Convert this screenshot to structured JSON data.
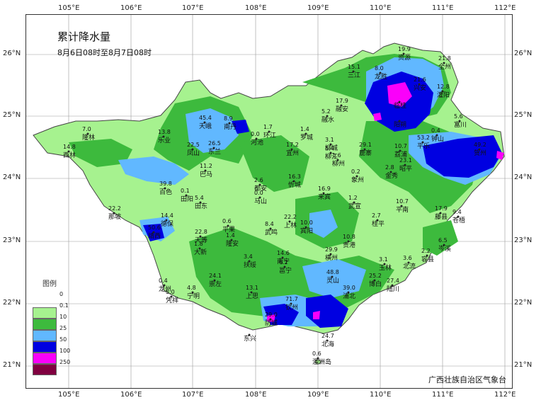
{
  "title": "累计降水量",
  "subtitle": "8月6日08时至8月7日08时",
  "credit": "广西壮族自治区气象台",
  "legend": {
    "title": "图例",
    "items": [
      {
        "value": "0",
        "color": "#ffffff"
      },
      {
        "value": "0.1",
        "color": "#a6f28f"
      },
      {
        "value": "10",
        "color": "#3dba3d"
      },
      {
        "value": "25",
        "color": "#61b8ff"
      },
      {
        "value": "50",
        "color": "#0000e1"
      },
      {
        "value": "100",
        "color": "#fa00fa"
      },
      {
        "value": "250",
        "color": "#800040"
      }
    ]
  },
  "lon_ticks": [
    "105°E",
    "106°E",
    "107°E",
    "108°E",
    "109°E",
    "110°E",
    "111°E",
    "112°E"
  ],
  "lat_ticks": [
    "26°N",
    "25°N",
    "24°N",
    "23°N",
    "22°N",
    "21°N"
  ],
  "places": [
    {
      "name": "资源",
      "value": "19.9"
    },
    {
      "name": "全州",
      "value": "21.8"
    },
    {
      "name": "三江",
      "value": "15.1"
    },
    {
      "name": "龙胜",
      "value": "8.0"
    },
    {
      "name": "兴安",
      "value": "21.6"
    },
    {
      "name": "灌阳",
      "value": "12.8"
    },
    {
      "name": "融安",
      "value": "17.9"
    },
    {
      "name": "融水",
      "value": "5.2"
    },
    {
      "name": "临桂",
      "value": ""
    },
    {
      "name": "阳朔",
      "value": ""
    },
    {
      "name": "南丹",
      "value": "8.9"
    },
    {
      "name": "天峨",
      "value": "45.4"
    },
    {
      "name": "环江",
      "value": "1.7"
    },
    {
      "name": "罗城",
      "value": "1.4"
    },
    {
      "name": "河池",
      "value": "0.0"
    },
    {
      "name": "乐业",
      "value": "13.8"
    },
    {
      "name": "隆林",
      "value": "7.0"
    },
    {
      "name": "西林",
      "value": "14.8"
    },
    {
      "name": "凤山",
      "value": "22.5"
    },
    {
      "name": "东兰",
      "value": "26.5"
    },
    {
      "name": "宜州",
      "value": "17.2"
    },
    {
      "name": "柳城",
      "value": "3.1"
    },
    {
      "name": "柳江",
      "value": "5.4"
    },
    {
      "name": "柳州",
      "value": "1.6"
    },
    {
      "name": "鹿寨",
      "value": "29.1"
    },
    {
      "name": "荔浦",
      "value": "10.7"
    },
    {
      "name": "平乐",
      "value": "53.2"
    },
    {
      "name": "钟山",
      "value": "0.4"
    },
    {
      "name": "富川",
      "value": "5.6"
    },
    {
      "name": "贺州",
      "value": "49.2"
    },
    {
      "name": "昭平",
      "value": "23.1"
    },
    {
      "name": "金秀",
      "value": "2.8"
    },
    {
      "name": "象州",
      "value": "0.2"
    },
    {
      "name": "巴马",
      "value": "11.2"
    },
    {
      "name": "百色",
      "value": "39.8"
    },
    {
      "name": "田阳",
      "value": "0.1"
    },
    {
      "name": "田东",
      "value": "5.4"
    },
    {
      "name": "平果",
      "value": "0.6"
    },
    {
      "name": "都安",
      "value": "2.6"
    },
    {
      "name": "马山",
      "value": "0.0"
    },
    {
      "name": "忻城",
      "value": "16.3"
    },
    {
      "name": "来宾",
      "value": "16.9"
    },
    {
      "name": "武宣",
      "value": "1.2"
    },
    {
      "name": "桂平",
      "value": "2.7"
    },
    {
      "name": "平南",
      "value": "10.7"
    },
    {
      "name": "藤县",
      "value": "17.9"
    },
    {
      "name": "苍梧",
      "value": "9.4"
    },
    {
      "name": "岑溪",
      "value": "6.5"
    },
    {
      "name": "那坡",
      "value": "22.2"
    },
    {
      "name": "德保",
      "value": "14.4"
    },
    {
      "name": "靖西",
      "value": "50.6"
    },
    {
      "name": "天等",
      "value": "22.8"
    },
    {
      "name": "大新",
      "value": "1.8"
    },
    {
      "name": "隆安",
      "value": "1.4"
    },
    {
      "name": "武鸣",
      "value": "8.4"
    },
    {
      "name": "上林",
      "value": "22.2"
    },
    {
      "name": "宾阳",
      "value": "10.0"
    },
    {
      "name": "贵港",
      "value": "10.8"
    },
    {
      "name": "容县",
      "value": "2.2"
    },
    {
      "name": "北流",
      "value": "3.6"
    },
    {
      "name": "玉林",
      "value": "3.1"
    },
    {
      "name": "横州",
      "value": "29.9"
    },
    {
      "name": "扶绥",
      "value": "3.4"
    },
    {
      "name": "南宁",
      "value": "14.6"
    },
    {
      "name": "邕宁",
      "value": "6.2"
    },
    {
      "name": "崇左",
      "value": "24.1"
    },
    {
      "name": "龙州",
      "value": "0.4"
    },
    {
      "name": "宁明",
      "value": "4.8"
    },
    {
      "name": "凭祥",
      "value": "5.0"
    },
    {
      "name": "上思",
      "value": "13.1"
    },
    {
      "name": "灵山",
      "value": "48.8"
    },
    {
      "name": "浦北",
      "value": "39.0"
    },
    {
      "name": "博白",
      "value": "25.2"
    },
    {
      "name": "陆川",
      "value": "27.4"
    },
    {
      "name": "东兴",
      "value": ""
    },
    {
      "name": "防城",
      "value": "29.0"
    },
    {
      "name": "钦州",
      "value": "71.7"
    },
    {
      "name": "北海",
      "value": "24.7"
    },
    {
      "name": "涠洲岛",
      "value": "0.6"
    }
  ]
}
